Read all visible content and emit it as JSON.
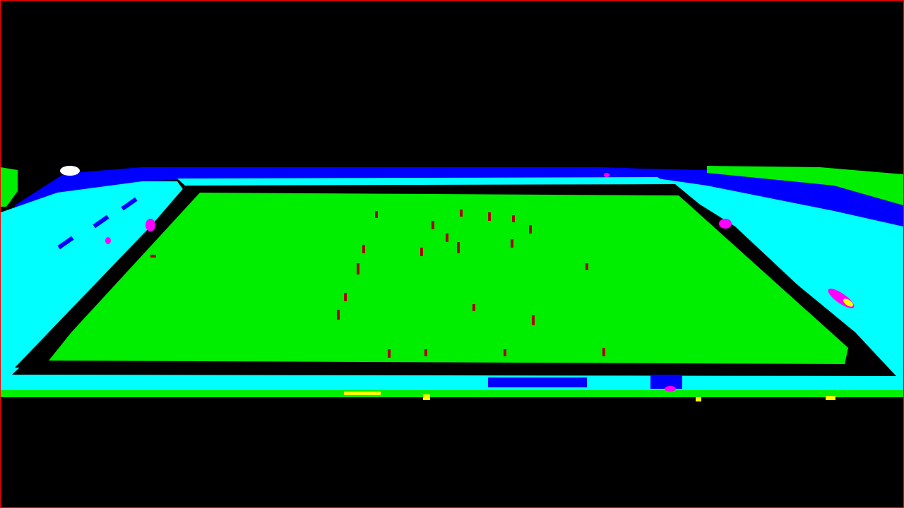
{
  "image": {
    "description_kind": "segmentation-style false-color render of a stadium pitch",
    "palette": {
      "background": "#000000",
      "border": "#ff0000",
      "pitch": "#00ee00",
      "stands_light": "#00ffff",
      "stands_dark": "#0000ff",
      "player": "#aa0000",
      "highlight_magenta": "#ff00ff",
      "highlight_yellow": "#ffff00",
      "highlight_white": "#ffffff",
      "pitch_edge": "#000000"
    },
    "players_count": 22
  }
}
